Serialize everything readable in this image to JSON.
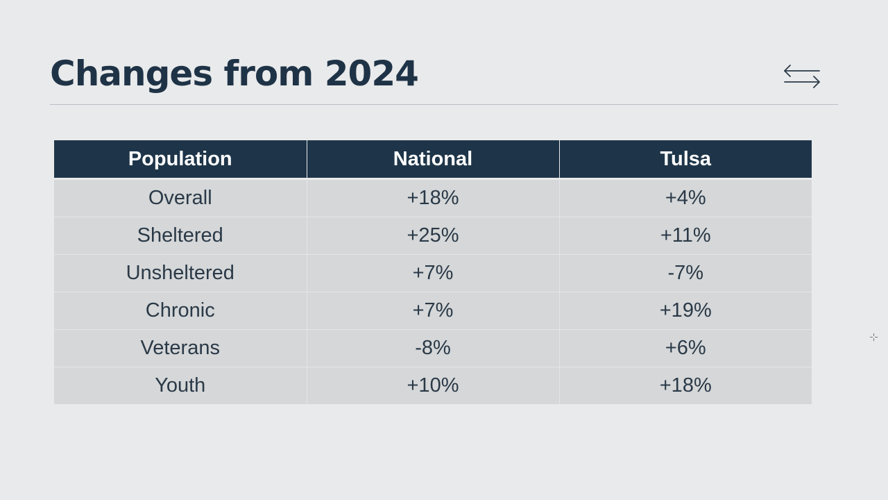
{
  "slide": {
    "title": "Changes from 2024"
  },
  "table": {
    "headers": [
      "Population",
      "National",
      "Tulsa"
    ],
    "rows": [
      [
        "Overall",
        "+18%",
        "+4%"
      ],
      [
        "Sheltered",
        "+25%",
        "+11%"
      ],
      [
        "Unsheltered",
        "+7%",
        "-7%"
      ],
      [
        "Chronic",
        "+7%",
        "+19%"
      ],
      [
        "Veterans",
        "-8%",
        "+6%"
      ],
      [
        "Youth",
        "+10%",
        "+18%"
      ]
    ]
  },
  "icons": {
    "swap": "swap-arrows-icon",
    "cursor": "crosshair-cursor-icon"
  },
  "colors": {
    "background": "#e9eaeb",
    "title": "#1f3347",
    "header_bg": "#1e3549",
    "header_text": "#ffffff",
    "cell_bg": "#d5d7d8",
    "cell_text": "#2a3947"
  }
}
